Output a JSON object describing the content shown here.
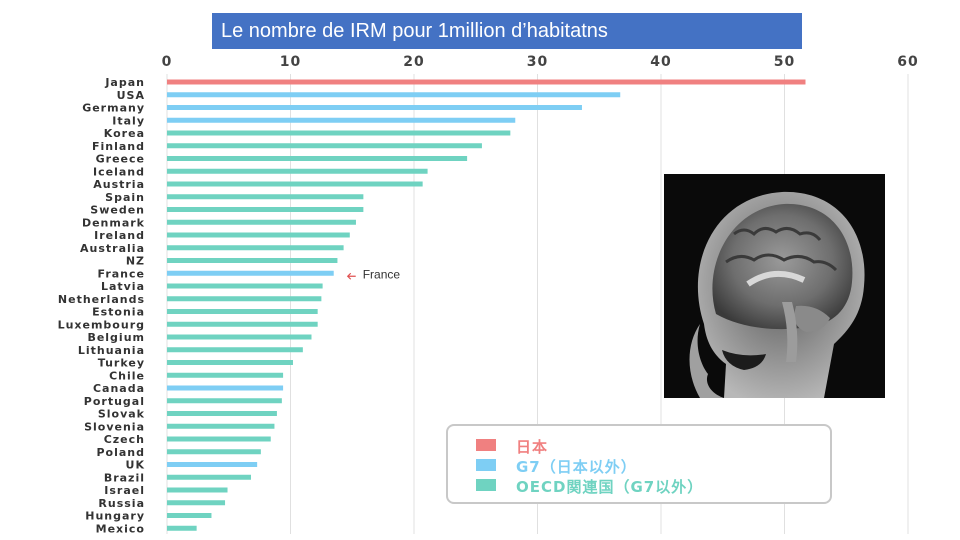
{
  "slide": {
    "title": "Le nombre de IRM pour 1million d’habitatns"
  },
  "chart_data": {
    "type": "bar",
    "orientation": "horizontal",
    "title": "Le nombre de IRM pour 1million d’habitatns",
    "xlim": [
      0,
      60
    ],
    "xticks": [
      0,
      10,
      20,
      30,
      40,
      50,
      60
    ],
    "xaxis_position": "top",
    "grid": true,
    "categories": [
      "Japan",
      "USA",
      "Germany",
      "Italy",
      "Korea",
      "Finland",
      "Greece",
      "Iceland",
      "Austria",
      "Spain",
      "Sweden",
      "Denmark",
      "Ireland",
      "Australia",
      "NZ",
      "France",
      "Latvia",
      "Netherlands",
      "Estonia",
      "Luxembourg",
      "Belgium",
      "Lithuania",
      "Turkey",
      "Chile",
      "Canada",
      "Portugal",
      "Slovak",
      "Slovenia",
      "Czech",
      "Poland",
      "UK",
      "Brazil",
      "Israel",
      "Russia",
      "Hungary",
      "Mexico"
    ],
    "values": [
      51.7,
      36.7,
      33.6,
      28.2,
      27.8,
      25.5,
      24.3,
      21.1,
      20.7,
      15.9,
      15.9,
      15.3,
      14.8,
      14.3,
      13.8,
      13.5,
      12.6,
      12.5,
      12.2,
      12.2,
      11.7,
      11.0,
      10.2,
      9.4,
      9.4,
      9.3,
      8.9,
      8.7,
      8.4,
      7.6,
      7.3,
      6.8,
      4.9,
      4.7,
      3.6,
      2.4
    ],
    "groups": [
      "japan",
      "g7",
      "g7",
      "g7",
      "oecd",
      "oecd",
      "oecd",
      "oecd",
      "oecd",
      "oecd",
      "oecd",
      "oecd",
      "oecd",
      "oecd",
      "oecd",
      "g7",
      "oecd",
      "oecd",
      "oecd",
      "oecd",
      "oecd",
      "oecd",
      "oecd",
      "oecd",
      "g7",
      "oecd",
      "oecd",
      "oecd",
      "oecd",
      "oecd",
      "g7",
      "oecd",
      "oecd",
      "oecd",
      "oecd",
      "oecd"
    ],
    "legend": [
      {
        "key": "japan",
        "label": "日本",
        "color": "#f08080"
      },
      {
        "key": "g7",
        "label": "G7（日本以外）",
        "color": "#7ecef4"
      },
      {
        "key": "oecd",
        "label": "OECD関連国（G7以外）",
        "color": "#6fd3c1"
      }
    ],
    "legend_position": "bottom-right",
    "annotation": {
      "target": "France",
      "text": "France"
    },
    "colors": {
      "tick_text": "#444444",
      "category_text": "#333333",
      "grid": "#e0e0e0",
      "annotation_arrow": "#e05050"
    }
  },
  "image": {
    "icon": "mri-brain-scan",
    "description_label": "MRI sagittal brain scan"
  }
}
